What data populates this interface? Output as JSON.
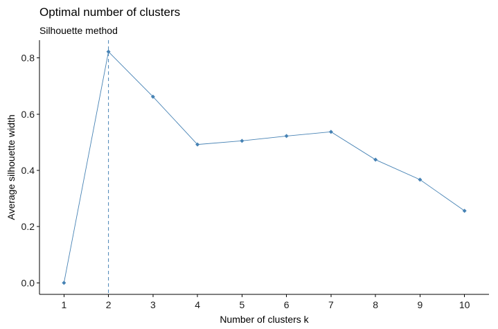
{
  "chart_data": {
    "type": "line",
    "title": "Optimal number of clusters",
    "subtitle": "Silhouette method",
    "xlabel": "Number of clusters k",
    "ylabel": "Average silhouette width",
    "x": [
      1,
      2,
      3,
      4,
      5,
      6,
      7,
      8,
      9,
      10
    ],
    "x_tick_labels": [
      "1",
      "2",
      "3",
      "4",
      "5",
      "6",
      "7",
      "8",
      "9",
      "10"
    ],
    "y": [
      0.0,
      0.822,
      0.662,
      0.492,
      0.505,
      0.522,
      0.537,
      0.438,
      0.367,
      0.256
    ],
    "y_ticks": [
      0.0,
      0.2,
      0.4,
      0.6,
      0.8
    ],
    "y_tick_labels": [
      "0.0",
      "0.2",
      "0.4",
      "0.6",
      "0.8"
    ],
    "xlim": [
      0.45,
      10.55
    ],
    "ylim": [
      -0.041,
      0.863
    ],
    "optimal_k": 2,
    "grid": false,
    "line_color": "#4682B4",
    "point_color": "#4682B4",
    "vline_color": "#4682B4"
  }
}
